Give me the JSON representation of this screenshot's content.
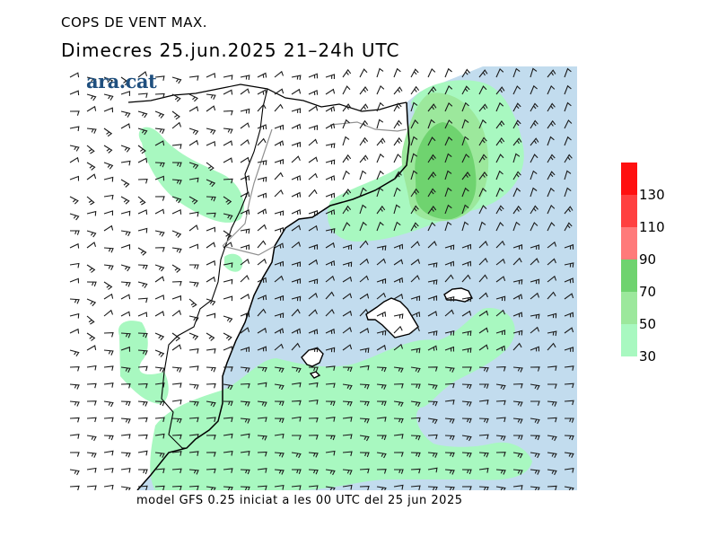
{
  "header": {
    "title": "COPS DE VENT MAX.",
    "subtitle": "Dimecres  25.jun.2025  21–24h  UTC"
  },
  "footer": {
    "model_text": "model GFS 0.25 iniciat a les 00 UTC del 25 jun 2025"
  },
  "logo": {
    "text": "ara.cat"
  },
  "legend": {
    "labels": [
      "130",
      "110",
      "90",
      "70",
      "50",
      "30"
    ],
    "colors": [
      "#ff1010",
      "#ff4040",
      "#ff7a7a",
      "#6fd36f",
      "#9ce89c",
      "#a8f8c0"
    ]
  },
  "map_colors": {
    "land": "#ffffff",
    "sea": "#c2dcee",
    "wind_30_50": "#a8f8c0",
    "wind_50_70": "#9ce89c",
    "wind_70_90": "#6fd36f",
    "islands": "#ffffff",
    "coast": "#000000",
    "border": "#909090"
  }
}
